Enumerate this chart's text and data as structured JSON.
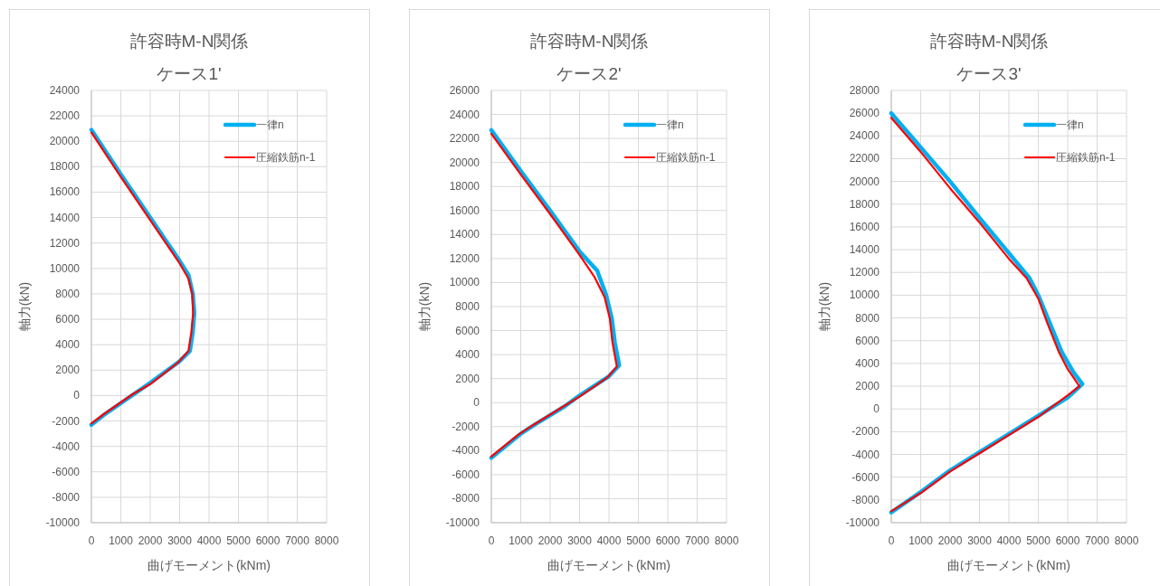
{
  "chart_data": [
    {
      "type": "line",
      "title": "許容時M-N関係",
      "subtitle": "ケース1'",
      "xlabel": "曲げモーメント(kNm)",
      "ylabel": "軸力(kN)",
      "xlim": [
        0,
        8000
      ],
      "xticks": [
        0,
        1000,
        2000,
        3000,
        4000,
        5000,
        6000,
        7000,
        8000
      ],
      "ylim": [
        -10000,
        24000
      ],
      "yticks": [
        -10000,
        -8000,
        -6000,
        -4000,
        -2000,
        0,
        2000,
        4000,
        6000,
        8000,
        10000,
        12000,
        14000,
        16000,
        18000,
        20000,
        22000,
        24000
      ],
      "grid": true,
      "legend": "top right",
      "series": [
        {
          "name": "一律n",
          "color": "#00b0f0",
          "x": [
            0,
            1000,
            2000,
            3000,
            3300,
            3450,
            3500,
            3450,
            3350,
            3000,
            2000,
            1500,
            1000,
            500,
            0
          ],
          "values": [
            20900,
            17400,
            14000,
            10600,
            9500,
            8000,
            6500,
            5000,
            3500,
            2700,
            1000,
            200,
            -600,
            -1400,
            -2300
          ]
        },
        {
          "name": "圧縮鉄筋n-1",
          "color": "#ff0000",
          "x": [
            0,
            1000,
            2000,
            3000,
            3300,
            3430,
            3460,
            3400,
            3300,
            2950,
            2000,
            1400,
            900,
            400,
            0
          ],
          "values": [
            20700,
            17200,
            13800,
            10400,
            9200,
            8000,
            6500,
            5000,
            3500,
            2600,
            900,
            100,
            -700,
            -1500,
            -2200
          ]
        }
      ]
    },
    {
      "type": "line",
      "title": "許容時M-N関係",
      "subtitle": "ケース2'",
      "xlabel": "曲げモーメント(kNm)",
      "ylabel": "軸力(kN)",
      "xlim": [
        0,
        8000
      ],
      "xticks": [
        0,
        1000,
        2000,
        3000,
        4000,
        5000,
        6000,
        7000,
        8000
      ],
      "ylim": [
        -10000,
        26000
      ],
      "yticks": [
        -10000,
        -8000,
        -6000,
        -4000,
        -2000,
        0,
        2000,
        4000,
        6000,
        8000,
        10000,
        12000,
        14000,
        16000,
        18000,
        20000,
        22000,
        24000,
        26000
      ],
      "grid": true,
      "legend": "top right",
      "series": [
        {
          "name": "一律n",
          "color": "#00b0f0",
          "x": [
            0,
            1000,
            2000,
            3000,
            3600,
            3900,
            4100,
            4200,
            4350,
            4000,
            3000,
            2500,
            1500,
            1000,
            0
          ],
          "values": [
            22700,
            19300,
            16000,
            12600,
            11000,
            9000,
            7000,
            5000,
            3100,
            2200,
            600,
            -300,
            -1800,
            -2600,
            -4600
          ]
        },
        {
          "name": "圧縮鉄筋n-1",
          "color": "#ff0000",
          "x": [
            0,
            1000,
            2000,
            3000,
            3500,
            3850,
            4030,
            4120,
            4270,
            3950,
            3000,
            2400,
            1400,
            900,
            0
          ],
          "values": [
            22400,
            19000,
            15700,
            12300,
            10500,
            8800,
            7000,
            5000,
            3000,
            2100,
            500,
            -400,
            -1900,
            -2700,
            -4500
          ]
        }
      ]
    },
    {
      "type": "line",
      "title": "許容時M-N関係",
      "subtitle": "ケース3'",
      "xlabel": "曲げモーメント(kNm)",
      "ylabel": "軸力(kN)",
      "xlim": [
        0,
        8000
      ],
      "xticks": [
        0,
        1000,
        2000,
        3000,
        4000,
        5000,
        6000,
        7000,
        8000
      ],
      "ylim": [
        -10000,
        28000
      ],
      "yticks": [
        -10000,
        -8000,
        -6000,
        -4000,
        -2000,
        0,
        2000,
        4000,
        6000,
        8000,
        10000,
        12000,
        14000,
        16000,
        18000,
        20000,
        22000,
        24000,
        26000,
        28000
      ],
      "grid": true,
      "legend": "top right",
      "series": [
        {
          "name": "一律n",
          "color": "#00b0f0",
          "x": [
            0,
            1000,
            2000,
            3000,
            4000,
            4700,
            5000,
            5400,
            5800,
            6200,
            6500,
            6000,
            5000,
            4000,
            3000,
            2000,
            1000,
            0
          ],
          "values": [
            26000,
            23000,
            20000,
            16800,
            13700,
            11500,
            10000,
            7500,
            5000,
            3200,
            2200,
            1000,
            -600,
            -2200,
            -3800,
            -5400,
            -7300,
            -9100
          ]
        },
        {
          "name": "圧縮鉄筋n-1",
          "color": "#ff0000",
          "x": [
            0,
            1000,
            2000,
            3000,
            4000,
            4600,
            5000,
            5300,
            5700,
            6000,
            6400,
            6000,
            5000,
            4000,
            3000,
            2000,
            1000,
            0
          ],
          "values": [
            25600,
            22600,
            19400,
            16400,
            13200,
            11500,
            9700,
            7600,
            5000,
            3500,
            2000,
            1200,
            -700,
            -2300,
            -3900,
            -5500,
            -7400,
            -9000
          ]
        }
      ]
    }
  ]
}
